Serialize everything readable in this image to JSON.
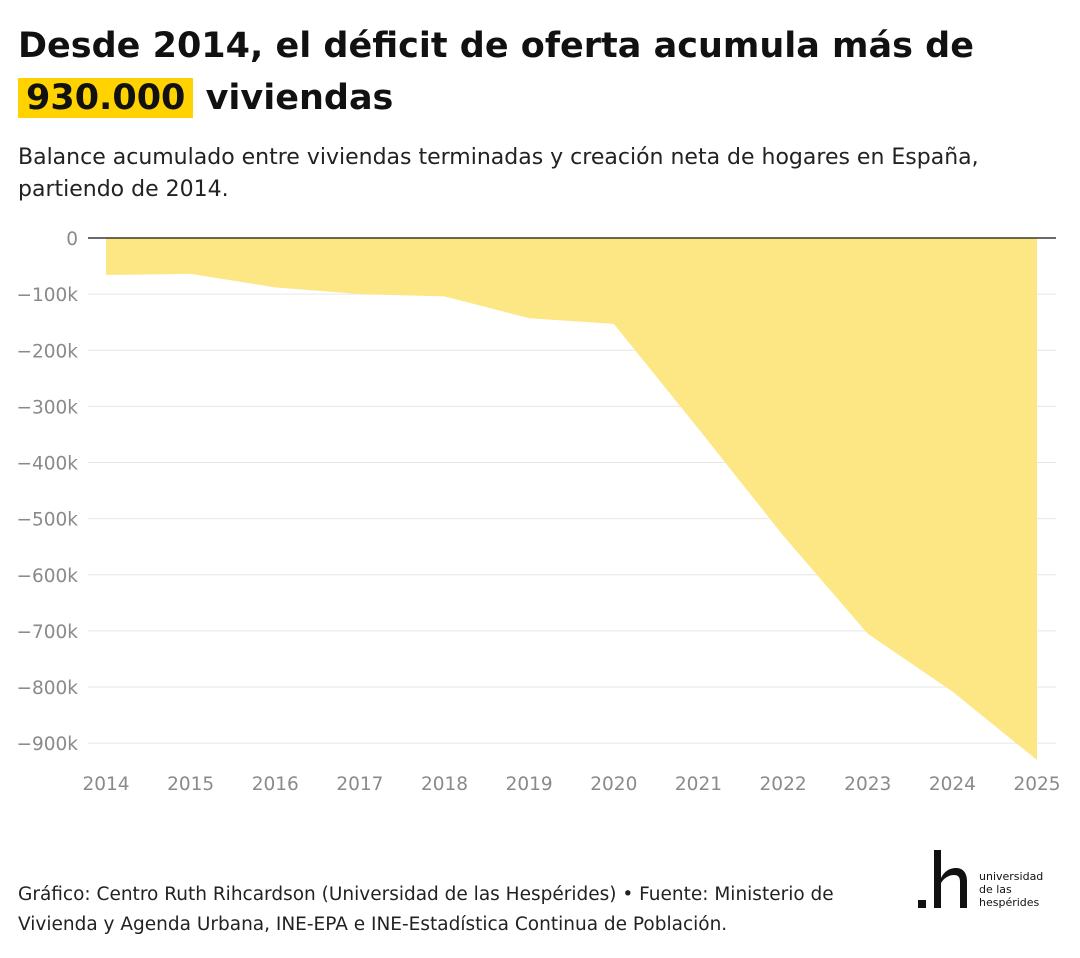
{
  "title": {
    "before": "Desde 2014, el déficit de oferta acumula más de",
    "highlight": "930.000",
    "after": "viviendas"
  },
  "subtitle": "Balance acumulado entre viviendas terminadas y creación neta de hogares en España, partiendo de 2014.",
  "source": "Gráfico: Centro Ruth Rihcardson (Universidad de las Hespérides) • Fuente: Ministerio de Vivienda y Agenda Urbana, INE-EPA e INE-Estadística Continua de Población.",
  "logo": {
    "mark": ".h",
    "lines": [
      "universidad",
      "de las",
      "hespérides"
    ]
  },
  "colors": {
    "area": "#fde785",
    "highlight": "#ffd200",
    "grid": "#e6e6e6",
    "zero_line": "#111111",
    "tick_text": "#8a8a8a"
  },
  "chart_data": {
    "type": "area",
    "x": [
      2014,
      2015,
      2016,
      2017,
      2018,
      2019,
      2020,
      2021,
      2022,
      2023,
      2024,
      2025
    ],
    "series": [
      {
        "values": [
          -66000,
          -64000,
          -88000,
          -100000,
          -104000,
          -143000,
          -153000,
          -340000,
          -530000,
          -705000,
          -808000,
          -930000
        ]
      }
    ],
    "ylim": [
      -930000,
      0
    ],
    "yticks": [
      0,
      -100000,
      -200000,
      -300000,
      -400000,
      -500000,
      -600000,
      -700000,
      -800000,
      -900000
    ],
    "ytick_labels": [
      "0",
      "−100k",
      "−200k",
      "−300k",
      "−400k",
      "−500k",
      "−600k",
      "−700k",
      "−800k",
      "−900k"
    ],
    "xtick_labels": [
      "2014",
      "2015",
      "2016",
      "2017",
      "2018",
      "2019",
      "2020",
      "2021",
      "2022",
      "2023",
      "2024",
      "2025"
    ],
    "grid": true,
    "legend": "none"
  }
}
